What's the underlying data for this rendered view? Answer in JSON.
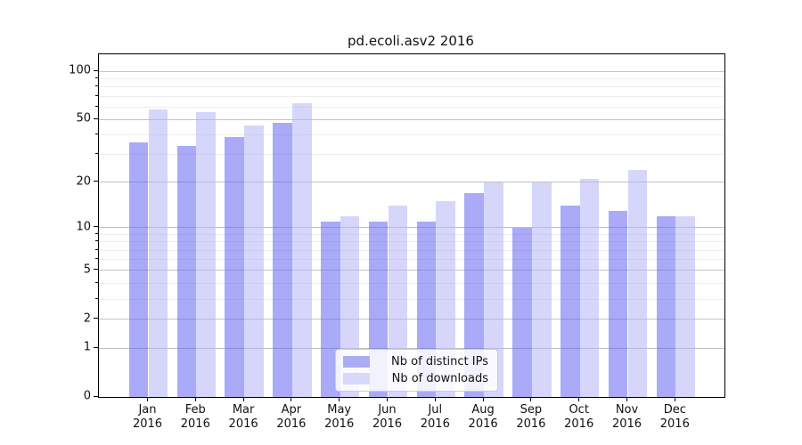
{
  "title": "pd.ecoli.asv2 2016",
  "chart_data": {
    "type": "bar",
    "title": "pd.ecoli.asv2 2016",
    "categories": [
      "Jan\n2016",
      "Feb\n2016",
      "Mar\n2016",
      "Apr\n2016",
      "May\n2016",
      "Jun\n2016",
      "Jul\n2016",
      "Aug\n2016",
      "Sep\n2016",
      "Oct\n2016",
      "Nov\n2016",
      "Dec\n2016"
    ],
    "series": [
      {
        "name": "Nb of distinct IPs",
        "color": "#abacf4",
        "fill": "rgba(92,92,242,0.52)",
        "values": [
          36,
          34,
          39,
          48,
          11,
          11,
          11,
          17,
          10,
          14,
          13,
          12
        ]
      },
      {
        "name": "Nb of downloads",
        "color": "#d8d8fa",
        "fill": "rgba(176,176,248,0.52)",
        "values": [
          58,
          56,
          46,
          63,
          12,
          14,
          15,
          20,
          20,
          21,
          24,
          12
        ]
      }
    ],
    "yscale": "log1p",
    "yticks": [
      0,
      1,
      2,
      5,
      10,
      20,
      50,
      100
    ],
    "minor_gridlines": [
      3,
      4,
      6,
      7,
      8,
      9,
      30,
      40,
      60,
      70,
      80,
      90
    ],
    "ylim_top_value": 128,
    "grid": true,
    "legend_position": "lower center",
    "colors": {
      "major_grid": "#c2c2c2",
      "minor_grid": "#ededed",
      "spine": "#000000",
      "background": "#ffffff"
    }
  }
}
